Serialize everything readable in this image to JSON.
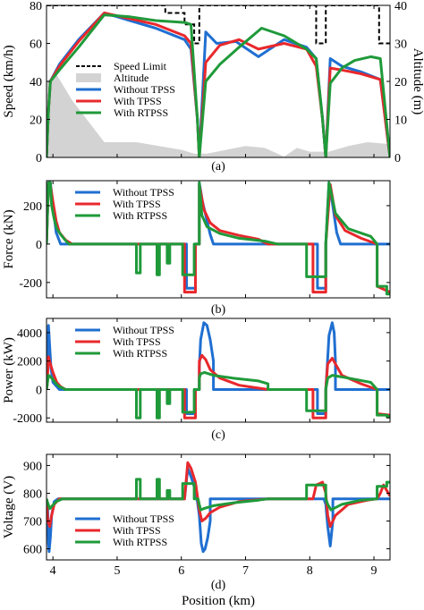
{
  "figure": {
    "xlabel": "Position (km)",
    "x_ticks": [
      4,
      5,
      6,
      7,
      8,
      9
    ],
    "xlim": [
      3.9,
      9.25
    ]
  },
  "chart_data": [
    {
      "id": "a",
      "type": "line",
      "caption": "(a)",
      "ylabel": "Speed (km/h)",
      "y2label": "Altitude (m)",
      "ylim": [
        0,
        80
      ],
      "y_ticks": [
        0,
        20,
        40,
        60,
        80
      ],
      "y2lim": [
        0,
        40
      ],
      "y2_ticks": [
        0,
        10,
        20,
        30,
        40
      ],
      "legend": {
        "placement": "top-left",
        "entries": [
          "Speed Limit",
          "Altitude",
          "Without TPSS",
          "With TPSS",
          "With RTPSS"
        ]
      },
      "speed_limit": {
        "name": "Speed Limit",
        "color": "#000000",
        "x": [
          3.9,
          5.75,
          5.75,
          6.05,
          6.05,
          6.2,
          6.2,
          6.28,
          6.28,
          8.1,
          8.1,
          8.25,
          8.25,
          9.08,
          9.08,
          9.25
        ],
        "y": [
          80,
          80,
          76,
          76,
          70,
          70,
          60,
          60,
          80,
          80,
          60,
          60,
          80,
          80,
          60,
          60
        ]
      },
      "altitude": {
        "name": "Altitude",
        "color": "#d3d3d3",
        "x": [
          3.9,
          4.05,
          4.3,
          4.8,
          5.3,
          6.0,
          6.2,
          6.4,
          6.7,
          7.0,
          7.3,
          7.6,
          7.8,
          8.0,
          8.3,
          8.6,
          8.9,
          9.25
        ],
        "y": [
          20,
          22,
          15,
          4,
          4,
          2,
          1,
          1,
          2,
          3,
          2.5,
          0.2,
          2.5,
          1.5,
          1.5,
          3,
          4,
          3.5
        ]
      },
      "series": [
        {
          "name": "Without TPSS",
          "color": "#1f6fd1",
          "x": [
            3.9,
            3.93,
            3.96,
            4.1,
            4.4,
            4.8,
            5.2,
            5.6,
            6.05,
            6.15,
            6.25,
            6.28,
            6.38,
            6.55,
            6.85,
            7.2,
            7.6,
            7.95,
            8.1,
            8.2,
            8.25,
            8.32,
            8.5,
            8.8,
            9.1,
            9.25
          ],
          "y": [
            0,
            25,
            40,
            49,
            62,
            76,
            72,
            68,
            62,
            57,
            20,
            0,
            66,
            60,
            61,
            53,
            62,
            58,
            52,
            20,
            0,
            52,
            48,
            45,
            41,
            0
          ]
        },
        {
          "name": "With TPSS",
          "color": "#e8282c",
          "x": [
            3.9,
            3.93,
            3.96,
            4.1,
            4.4,
            4.8,
            5.2,
            5.6,
            6.05,
            6.15,
            6.25,
            6.28,
            6.38,
            6.6,
            6.9,
            7.2,
            7.6,
            7.95,
            8.1,
            8.2,
            8.25,
            8.32,
            8.5,
            8.8,
            9.1,
            9.25
          ],
          "y": [
            0,
            25,
            40,
            48,
            61,
            76,
            73,
            70,
            64,
            60,
            20,
            0,
            50,
            59,
            62,
            57,
            60,
            57,
            48,
            20,
            0,
            47,
            46,
            44,
            41,
            0
          ]
        },
        {
          "name": "With RTPSS",
          "color": "#1f9a3a",
          "x": [
            3.9,
            3.93,
            3.96,
            4.1,
            4.4,
            4.8,
            5.2,
            5.6,
            6.05,
            6.15,
            6.25,
            6.28,
            6.38,
            6.6,
            6.9,
            7.25,
            7.6,
            7.95,
            8.1,
            8.2,
            8.25,
            8.32,
            8.5,
            8.7,
            8.95,
            9.1,
            9.25
          ],
          "y": [
            0,
            25,
            40,
            46,
            58,
            75,
            74,
            72,
            71,
            70,
            20,
            0,
            40,
            49,
            58,
            68,
            64,
            57,
            52,
            20,
            0,
            39,
            47,
            51,
            53,
            52,
            0
          ]
        }
      ]
    },
    {
      "id": "b",
      "type": "line",
      "caption": "(b)",
      "ylabel": "Force (kN)",
      "ylim": [
        -280,
        330
      ],
      "y_ticks": [
        -200,
        0,
        200
      ],
      "legend": {
        "placement": "top-right",
        "entries": [
          "Without TPSS",
          "With TPSS",
          "With RTPSS"
        ]
      },
      "series": [
        {
          "name": "Without TPSS",
          "color": "#1f6fd1",
          "x": [
            3.9,
            3.93,
            3.96,
            4.0,
            4.05,
            4.12,
            4.3,
            6.08,
            6.08,
            6.22,
            6.22,
            6.28,
            6.28,
            6.33,
            6.38,
            6.45,
            6.5,
            6.5,
            8.12,
            8.12,
            8.25,
            8.25,
            8.3,
            8.35,
            8.42,
            8.48,
            8.48,
            9.25
          ],
          "y": [
            0,
            320,
            320,
            200,
            60,
            0,
            0,
            0,
            -230,
            -230,
            0,
            0,
            320,
            220,
            150,
            50,
            0,
            0,
            0,
            -230,
            -230,
            0,
            320,
            220,
            60,
            0,
            0,
            0
          ]
        },
        {
          "name": "With TPSS",
          "color": "#e8282c",
          "x": [
            3.9,
            3.93,
            3.96,
            4.0,
            4.05,
            4.1,
            4.2,
            4.3,
            6.05,
            6.05,
            6.22,
            6.22,
            6.28,
            6.28,
            6.35,
            6.45,
            6.6,
            6.9,
            7.2,
            7.35,
            7.35,
            8.05,
            8.05,
            8.25,
            8.25,
            8.32,
            8.4,
            8.55,
            8.8,
            9.05,
            9.05,
            9.25
          ],
          "y": [
            0,
            310,
            310,
            220,
            120,
            60,
            20,
            0,
            0,
            -250,
            -250,
            0,
            0,
            310,
            180,
            110,
            70,
            45,
            25,
            0,
            0,
            0,
            -250,
            -250,
            0,
            310,
            150,
            70,
            30,
            0,
            -220,
            -250
          ]
        },
        {
          "name": "With RTPSS",
          "color": "#1f9a3a",
          "x": [
            3.9,
            3.93,
            3.96,
            3.98,
            4.02,
            4.06,
            4.12,
            4.18,
            4.25,
            5.3,
            5.3,
            5.36,
            5.36,
            5.62,
            5.62,
            5.66,
            5.66,
            5.78,
            5.78,
            5.82,
            5.82,
            6.02,
            6.02,
            6.2,
            6.2,
            6.28,
            6.28,
            6.32,
            6.4,
            6.6,
            6.9,
            7.3,
            7.5,
            7.5,
            7.95,
            7.95,
            8.25,
            8.25,
            8.3,
            8.4,
            8.6,
            8.95,
            9.05,
            9.05,
            9.2,
            9.2,
            9.25
          ],
          "y": [
            0,
            320,
            320,
            200,
            130,
            80,
            50,
            25,
            0,
            0,
            -150,
            -150,
            0,
            0,
            -160,
            -160,
            0,
            0,
            -100,
            -100,
            0,
            0,
            -160,
            -160,
            0,
            0,
            320,
            150,
            90,
            55,
            30,
            15,
            0,
            0,
            0,
            -170,
            -170,
            0,
            320,
            160,
            80,
            40,
            0,
            -220,
            -220,
            -260,
            -260
          ]
        }
      ]
    },
    {
      "id": "c",
      "type": "line",
      "caption": "(c)",
      "ylabel": "Power (kW)",
      "ylim": [
        -2300,
        5000
      ],
      "y_ticks": [
        -2000,
        0,
        2000,
        4000
      ],
      "legend": {
        "placement": "top-right",
        "entries": [
          "Without TPSS",
          "With TPSS",
          "With RTPSS"
        ]
      },
      "series": [
        {
          "name": "Without TPSS",
          "color": "#1f6fd1",
          "x": [
            3.9,
            3.91,
            3.93,
            3.95,
            3.97,
            4.0,
            4.1,
            6.08,
            6.08,
            6.22,
            6.22,
            6.28,
            6.28,
            6.3,
            6.35,
            6.4,
            6.45,
            6.5,
            6.5,
            8.12,
            8.12,
            8.25,
            8.25,
            8.27,
            8.3,
            8.35,
            8.38,
            8.4,
            8.4,
            9.25
          ],
          "y": [
            0,
            300,
            4500,
            3000,
            1500,
            500,
            0,
            0,
            -1700,
            -1700,
            0,
            0,
            1500,
            3500,
            4700,
            4500,
            3500,
            2000,
            0,
            0,
            -1700,
            -1700,
            0,
            1500,
            3800,
            4700,
            4000,
            2000,
            0,
            0
          ]
        },
        {
          "name": "With TPSS",
          "color": "#e8282c",
          "x": [
            3.9,
            3.91,
            3.93,
            3.96,
            4.0,
            4.06,
            4.12,
            4.2,
            6.05,
            6.05,
            6.22,
            6.22,
            6.28,
            6.28,
            6.32,
            6.38,
            6.45,
            6.6,
            6.9,
            7.35,
            7.35,
            8.05,
            8.05,
            8.25,
            8.25,
            8.28,
            8.35,
            8.5,
            8.8,
            9.05,
            9.05,
            9.25
          ],
          "y": [
            0,
            300,
            2300,
            1800,
            1200,
            500,
            200,
            0,
            0,
            -2000,
            -2000,
            0,
            0,
            2000,
            2400,
            2100,
            1400,
            800,
            300,
            0,
            0,
            0,
            -2000,
            -2000,
            0,
            1800,
            2200,
            1000,
            400,
            0,
            -1700,
            -1800
          ]
        },
        {
          "name": "With RTPSS",
          "color": "#1f9a3a",
          "x": [
            3.9,
            3.91,
            3.93,
            3.96,
            4.0,
            4.05,
            4.1,
            4.2,
            5.3,
            5.3,
            5.36,
            5.36,
            5.62,
            5.62,
            5.66,
            5.66,
            5.78,
            5.78,
            5.82,
            5.82,
            6.02,
            6.02,
            6.2,
            6.2,
            6.28,
            6.28,
            6.3,
            6.36,
            6.5,
            6.8,
            7.2,
            7.35,
            7.35,
            7.95,
            7.95,
            8.25,
            8.25,
            8.28,
            8.35,
            8.6,
            8.95,
            9.05,
            9.05,
            9.2,
            9.2,
            9.25
          ],
          "y": [
            0,
            300,
            1000,
            900,
            700,
            400,
            200,
            0,
            0,
            -2000,
            -2000,
            0,
            0,
            -2000,
            -2000,
            0,
            0,
            -1000,
            -1000,
            0,
            0,
            -1600,
            -1600,
            0,
            0,
            800,
            1100,
            1200,
            1000,
            800,
            600,
            400,
            0,
            0,
            -1500,
            -1500,
            0,
            800,
            1000,
            800,
            500,
            0,
            -1800,
            -1800,
            -1900,
            -1900
          ]
        }
      ]
    },
    {
      "id": "d",
      "type": "line",
      "caption": "(d)",
      "ylabel": "Voltage (V)",
      "ylim": [
        560,
        940
      ],
      "y_ticks": [
        600,
        700,
        800,
        900
      ],
      "legend": {
        "placement": "bottom-center",
        "entries": [
          "Without TPSS",
          "With TPSS",
          "With RTPSS"
        ]
      },
      "series": [
        {
          "name": "Without TPSS",
          "color": "#1f6fd1",
          "x": [
            3.9,
            3.92,
            3.93,
            3.94,
            3.96,
            3.98,
            4.02,
            4.08,
            6.05,
            6.1,
            6.15,
            6.22,
            6.25,
            6.28,
            6.31,
            6.34,
            6.37,
            6.41,
            6.45,
            6.45,
            8.22,
            8.25,
            8.28,
            8.32,
            8.36,
            8.36,
            9.25
          ],
          "y": [
            780,
            740,
            620,
            590,
            640,
            720,
            770,
            780,
            780,
            890,
            860,
            810,
            770,
            720,
            620,
            590,
            600,
            640,
            700,
            780,
            780,
            760,
            680,
            610,
            700,
            780,
            780
          ]
        },
        {
          "name": "With TPSS",
          "color": "#e8282c",
          "x": [
            3.9,
            3.92,
            3.95,
            3.98,
            4.02,
            4.1,
            6.05,
            6.1,
            6.15,
            6.22,
            6.25,
            6.28,
            6.32,
            6.38,
            6.45,
            6.6,
            6.9,
            7.35,
            7.35,
            8.05,
            8.1,
            8.2,
            8.25,
            8.28,
            8.32,
            8.4,
            8.6,
            8.9,
            9.05,
            9.1,
            9.15,
            9.25
          ],
          "y": [
            780,
            700,
            680,
            720,
            760,
            780,
            780,
            910,
            890,
            840,
            790,
            740,
            700,
            710,
            730,
            750,
            770,
            780,
            780,
            780,
            830,
            840,
            800,
            720,
            680,
            720,
            760,
            775,
            780,
            800,
            830,
            790
          ]
        },
        {
          "name": "With RTPSS",
          "color": "#1f9a3a",
          "x": [
            3.9,
            3.92,
            3.95,
            3.99,
            4.05,
            4.15,
            5.3,
            5.3,
            5.36,
            5.36,
            5.62,
            5.62,
            5.66,
            5.66,
            5.78,
            5.78,
            5.82,
            5.82,
            6.02,
            6.02,
            6.2,
            6.2,
            6.26,
            6.28,
            6.3,
            6.35,
            6.5,
            6.8,
            7.2,
            7.35,
            7.35,
            7.95,
            7.95,
            8.25,
            8.25,
            8.28,
            8.33,
            8.5,
            8.8,
            9.05,
            9.05,
            9.2,
            9.2,
            9.25
          ],
          "y": [
            780,
            765,
            745,
            755,
            770,
            780,
            780,
            850,
            850,
            780,
            780,
            850,
            850,
            780,
            780,
            810,
            810,
            780,
            780,
            835,
            835,
            780,
            780,
            760,
            740,
            745,
            755,
            765,
            775,
            780,
            780,
            780,
            830,
            830,
            780,
            760,
            740,
            760,
            775,
            780,
            825,
            825,
            840,
            840
          ]
        }
      ]
    }
  ]
}
